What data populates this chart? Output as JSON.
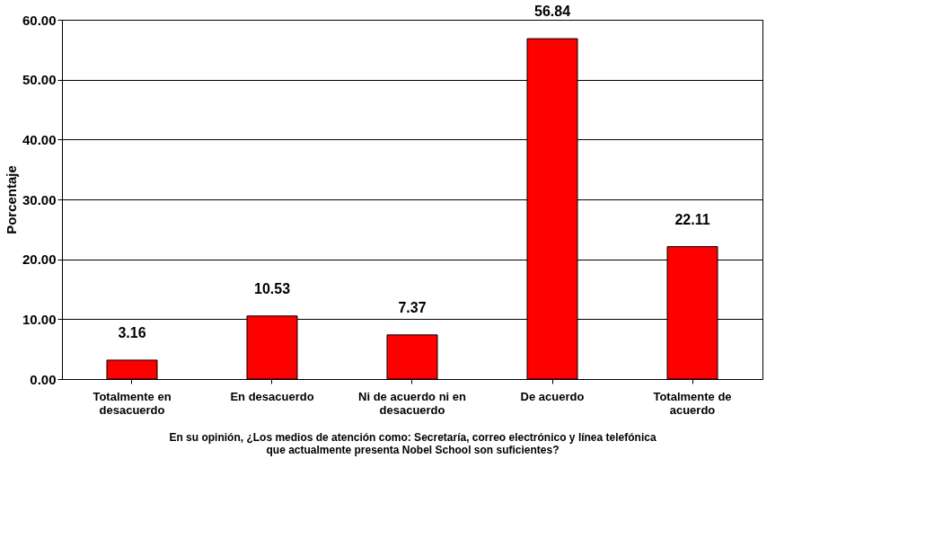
{
  "chart_data": {
    "type": "bar",
    "categories": [
      "Totalmente en desacuerdo",
      "En desacuerdo",
      "Ni de acuerdo ni en desacuerdo",
      "De acuerdo",
      "Totalmente de acuerdo"
    ],
    "values": [
      3.16,
      10.53,
      7.37,
      56.84,
      22.11
    ],
    "color": "#ff0000",
    "ylabel": "Porcentaje",
    "xlabel": "En su opinión, ¿Los medios de atención como:  Secretaría, correo electrónico y línea telefónica que actualmente presenta Nobel School son suficientes?",
    "ylim": [
      0,
      60
    ],
    "yticks": [
      {
        "value": 0,
        "label": "0.00"
      },
      {
        "value": 10,
        "label": "10.00"
      },
      {
        "value": 20,
        "label": "20.00"
      },
      {
        "value": 30,
        "label": "30.00"
      },
      {
        "value": 40,
        "label": "40.00"
      },
      {
        "value": 50,
        "label": "50.00"
      },
      {
        "value": 60,
        "label": "60.00"
      }
    ],
    "grid": "y",
    "data_labels": true
  }
}
